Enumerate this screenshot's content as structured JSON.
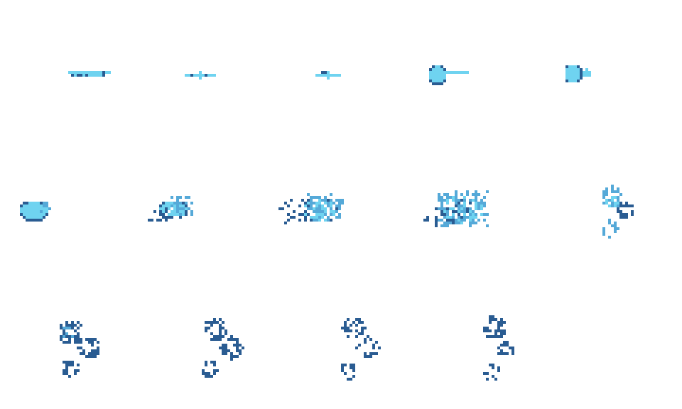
{
  "sprite_sheet": {
    "background": "#ffffff",
    "palette": {
      "light": "#6fd3f0",
      "mid": "#55a9d8",
      "dark": "#2a5c92",
      "darkest": "#1d3f6e"
    },
    "frame_count": 14,
    "rows": [
      5,
      5,
      4
    ],
    "frames": [
      {
        "stage": "streak"
      },
      {
        "stage": "streak"
      },
      {
        "stage": "streak"
      },
      {
        "stage": "blob-tail"
      },
      {
        "stage": "blob-tail"
      },
      {
        "stage": "blob"
      },
      {
        "stage": "scatter"
      },
      {
        "stage": "scatter"
      },
      {
        "stage": "scatter"
      },
      {
        "stage": "clusters"
      },
      {
        "stage": "clusters"
      },
      {
        "stage": "clusters"
      },
      {
        "stage": "clusters"
      },
      {
        "stage": "clusters"
      }
    ]
  }
}
